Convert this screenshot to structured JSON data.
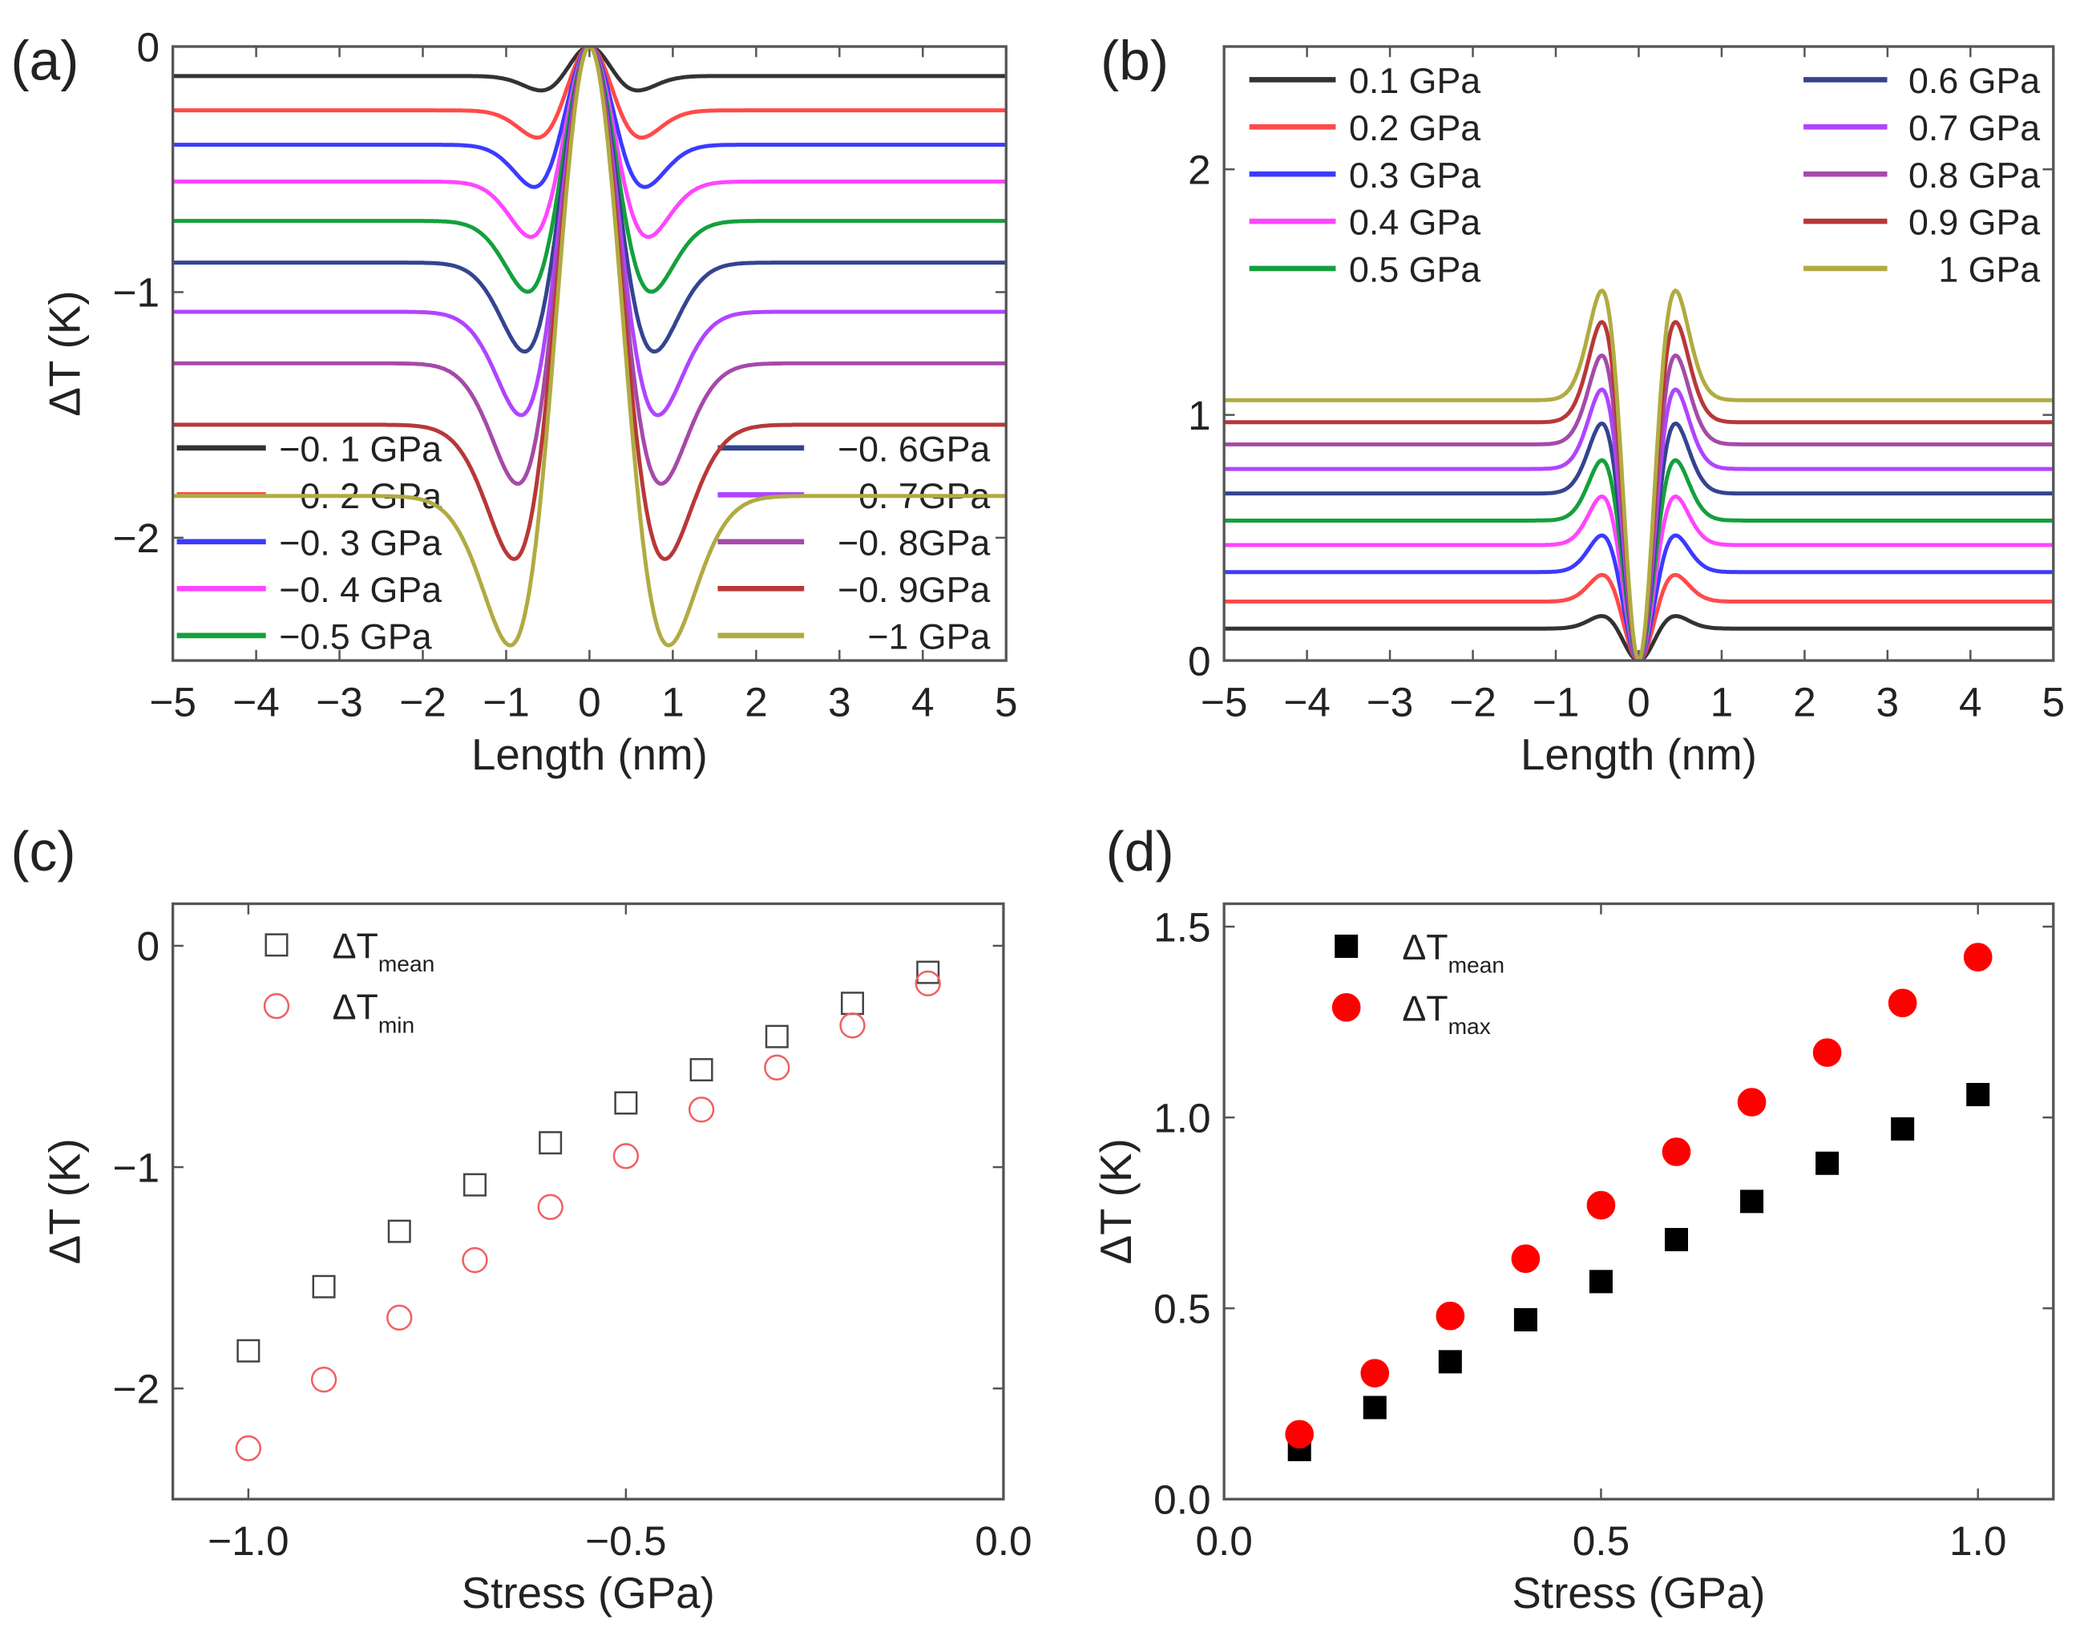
{
  "chart_data": [
    {
      "panel": "(a)",
      "type": "line",
      "xlabel": "Length (nm)",
      "ylabel": "ΔT (K)",
      "xlim": [
        -5,
        5
      ],
      "ylim": [
        -2.5,
        0
      ],
      "xticks": [
        "−5",
        "−4",
        "−3",
        "−2",
        "−1",
        "0",
        "1",
        "2",
        "3",
        "4",
        "5"
      ],
      "yticks": [
        {
          "v": 0,
          "t": "0"
        },
        {
          "v": -1,
          "t": "−1"
        },
        {
          "v": -2,
          "t": "−2"
        }
      ],
      "legend_placement": "bottom",
      "series": [
        {
          "name": "−0. 1 GPa",
          "stress": -0.1,
          "baseline": -0.12,
          "extreme": -0.17,
          "color": "#333333"
        },
        {
          "name": "−0. 2 GPa",
          "stress": -0.2,
          "baseline": -0.26,
          "extreme": -0.35,
          "color": "#ff4a4a"
        },
        {
          "name": "−0. 3 GPa",
          "stress": -0.3,
          "baseline": -0.4,
          "extreme": -0.54,
          "color": "#3b3bff"
        },
        {
          "name": "−0. 4 GPa",
          "stress": -0.4,
          "baseline": -0.55,
          "extreme": -0.73,
          "color": "#ff45ff"
        },
        {
          "name": "−0.5 GPa",
          "stress": -0.5,
          "baseline": -0.71,
          "extreme": -0.94,
          "color": "#14a03c"
        },
        {
          "name": "−0. 6GPa",
          "stress": -0.6,
          "baseline": -0.88,
          "extreme": -1.17,
          "color": "#34448f"
        },
        {
          "name": "−0. 7GPa",
          "stress": -0.7,
          "baseline": -1.08,
          "extreme": -1.41,
          "color": "#b044ff"
        },
        {
          "name": "−0. 8GPa",
          "stress": -0.8,
          "baseline": -1.29,
          "extreme": -1.67,
          "color": "#a54aa8"
        },
        {
          "name": "−0. 9GPa",
          "stress": -0.9,
          "baseline": -1.54,
          "extreme": -1.95,
          "color": "#b83838"
        },
        {
          "name": "−1 GPa",
          "stress": -1.0,
          "baseline": -1.83,
          "extreme": -2.27,
          "color": "#b0ab42"
        }
      ]
    },
    {
      "panel": "(b)",
      "type": "line",
      "xlabel": "Length (nm)",
      "ylabel": "",
      "xlim": [
        -5,
        5
      ],
      "ylim": [
        0,
        2.5
      ],
      "xticks": [
        "−5",
        "−4",
        "−3",
        "−2",
        "−1",
        "0",
        "1",
        "2",
        "3",
        "4",
        "5"
      ],
      "yticks": [
        {
          "v": 0,
          "t": "0"
        },
        {
          "v": 1,
          "t": "1"
        },
        {
          "v": 2,
          "t": "2"
        }
      ],
      "legend_placement": "top",
      "series": [
        {
          "name": "0.1 GPa",
          "stress": 0.1,
          "baseline": 0.13,
          "extreme": 0.17,
          "color": "#333333"
        },
        {
          "name": "0.2 GPa",
          "stress": 0.2,
          "baseline": 0.24,
          "extreme": 0.33,
          "color": "#ff4a4a"
        },
        {
          "name": "0.3 GPa",
          "stress": 0.3,
          "baseline": 0.36,
          "extreme": 0.48,
          "color": "#3b3bff"
        },
        {
          "name": "0.4 GPa",
          "stress": 0.4,
          "baseline": 0.47,
          "extreme": 0.63,
          "color": "#ff45ff"
        },
        {
          "name": "0.5 GPa",
          "stress": 0.5,
          "baseline": 0.57,
          "extreme": 0.77,
          "color": "#14a03c"
        },
        {
          "name": "0.6 GPa",
          "stress": 0.6,
          "baseline": 0.68,
          "extreme": 0.91,
          "color": "#34448f"
        },
        {
          "name": "0.7 GPa",
          "stress": 0.7,
          "baseline": 0.78,
          "extreme": 1.04,
          "color": "#b044ff"
        },
        {
          "name": "0.8 GPa",
          "stress": 0.8,
          "baseline": 0.88,
          "extreme": 1.17,
          "color": "#a54aa8"
        },
        {
          "name": "0.9 GPa",
          "stress": 0.9,
          "baseline": 0.97,
          "extreme": 1.3,
          "color": "#b83838"
        },
        {
          "name": "1 GPa",
          "stress": 1.0,
          "baseline": 1.06,
          "extreme": 1.42,
          "color": "#b0ab42"
        }
      ]
    },
    {
      "panel": "(c)",
      "type": "scatter",
      "xlabel": "Stress (GPa)",
      "ylabel": "ΔT (K)",
      "xlim": [
        -1.1,
        0
      ],
      "ylim": [
        -2.5,
        0.19
      ],
      "xticks": [
        {
          "v": -1,
          "t": "−1.0"
        },
        {
          "v": -0.5,
          "t": "−0.5"
        },
        {
          "v": 0,
          "t": "0.0"
        }
      ],
      "yticks": [
        {
          "v": 0,
          "t": "0"
        },
        {
          "v": -1,
          "t": "−1"
        },
        {
          "v": -2,
          "t": "−2"
        }
      ],
      "legend_placement": "top-left",
      "x": [
        -1.0,
        -0.9,
        -0.8,
        -0.7,
        -0.6,
        -0.5,
        -0.4,
        -0.3,
        -0.2,
        -0.1
      ],
      "series": [
        {
          "name": "ΔT",
          "sub": "mean",
          "marker": "open-square",
          "color": "#444444",
          "values": [
            -1.83,
            -1.54,
            -1.29,
            -1.08,
            -0.89,
            -0.71,
            -0.56,
            -0.41,
            -0.26,
            -0.12
          ]
        },
        {
          "name": "ΔT",
          "sub": "min",
          "marker": "open-circle",
          "color": "#f06060",
          "values": [
            -2.27,
            -1.96,
            -1.68,
            -1.42,
            -1.18,
            -0.95,
            -0.74,
            -0.55,
            -0.36,
            -0.17
          ]
        }
      ]
    },
    {
      "panel": "(d)",
      "type": "scatter",
      "xlabel": "Stress (GPa)",
      "ylabel": "ΔT (K)",
      "xlim": [
        0,
        1.1
      ],
      "ylim": [
        0,
        1.56
      ],
      "xticks": [
        {
          "v": 0,
          "t": "0.0"
        },
        {
          "v": 0.5,
          "t": "0.5"
        },
        {
          "v": 1,
          "t": "1.0"
        }
      ],
      "yticks": [
        {
          "v": 0,
          "t": "0.0"
        },
        {
          "v": 0.5,
          "t": "0.5"
        },
        {
          "v": 1,
          "t": "1.0"
        },
        {
          "v": 1.5,
          "t": "1.5"
        }
      ],
      "legend_placement": "top-left",
      "x": [
        0.1,
        0.2,
        0.3,
        0.4,
        0.5,
        0.6,
        0.7,
        0.8,
        0.9,
        1.0
      ],
      "series": [
        {
          "name": "ΔT",
          "sub": "mean",
          "marker": "filled-square",
          "color": "#000000",
          "values": [
            0.13,
            0.24,
            0.36,
            0.47,
            0.57,
            0.68,
            0.78,
            0.88,
            0.97,
            1.06
          ]
        },
        {
          "name": "ΔT",
          "sub": "max",
          "marker": "filled-circle",
          "color": "#ff0000",
          "values": [
            0.17,
            0.33,
            0.48,
            0.63,
            0.77,
            0.91,
            1.04,
            1.17,
            1.3,
            1.42
          ]
        }
      ]
    }
  ]
}
